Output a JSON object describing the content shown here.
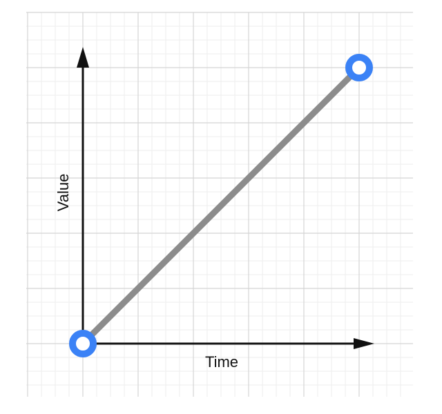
{
  "chart_data": {
    "type": "line",
    "xlabel": "Time",
    "ylabel": "Value",
    "x": [
      0,
      5
    ],
    "y": [
      0,
      5
    ],
    "xlim": [
      -1,
      6
    ],
    "ylim": [
      -1,
      6
    ],
    "grid": true,
    "series": [
      {
        "name": "",
        "points": [
          {
            "x": 0,
            "y": 0
          },
          {
            "x": 5,
            "y": 5
          }
        ]
      }
    ]
  },
  "colors": {
    "line": "#8c8c8c",
    "point": "#3b82f6",
    "axis": "#111111",
    "grid_major": "#d4d4d4",
    "grid_minor": "#eeeeee"
  }
}
